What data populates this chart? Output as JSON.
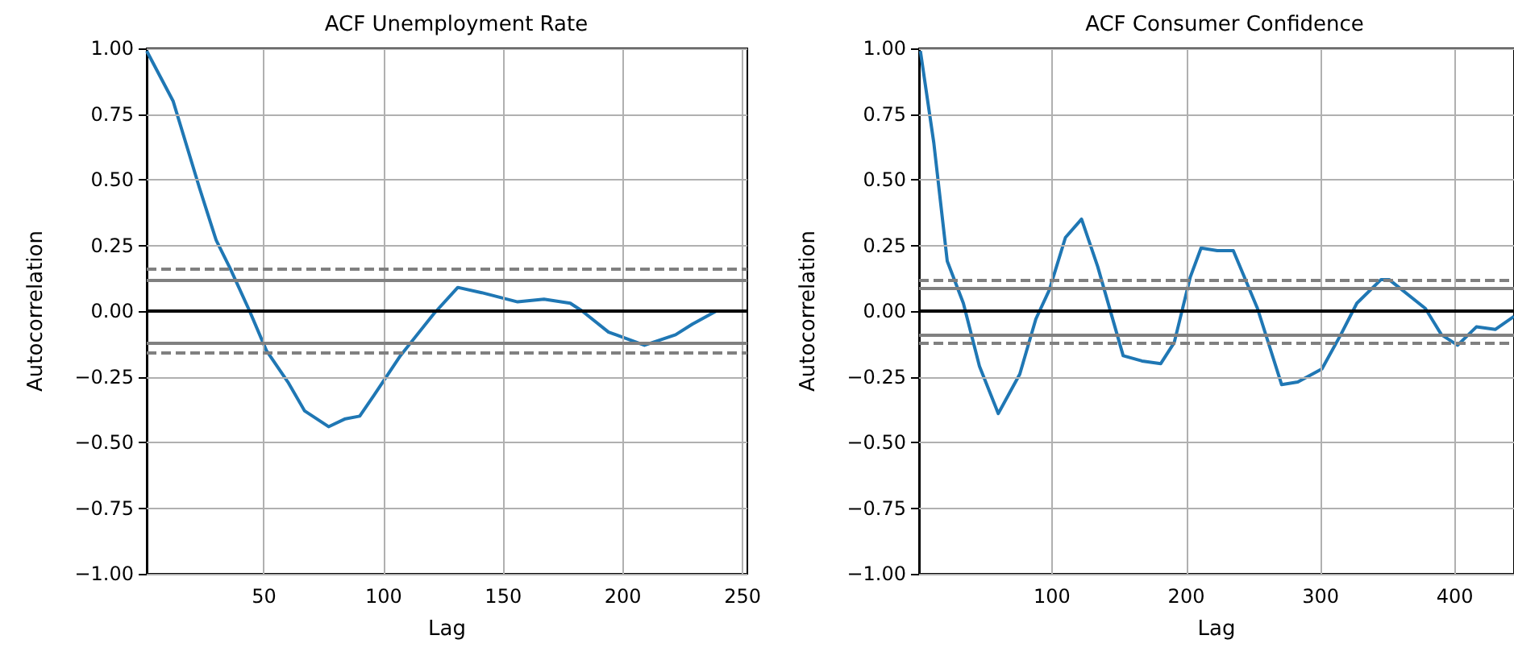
{
  "chart_data": [
    {
      "type": "line",
      "title": "ACF Unemployment Rate",
      "xlabel": "Lag",
      "ylabel": "Autocorrelation",
      "grid": true,
      "marker": "none",
      "line_style": "solid",
      "xlim": [
        1,
        252
      ],
      "xticks": [
        50,
        100,
        150,
        200,
        250
      ],
      "ylim": [
        -1,
        1
      ],
      "yticks": [
        {
          "value": -1,
          "label": "−1.00"
        },
        {
          "value": -0.75,
          "label": "−0.75"
        },
        {
          "value": -0.5,
          "label": "−0.50"
        },
        {
          "value": -0.25,
          "label": "−0.25"
        },
        {
          "value": 0,
          "label": "0.00"
        },
        {
          "value": 0.25,
          "label": "0.25"
        },
        {
          "value": 0.5,
          "label": "0.50"
        },
        {
          "value": 0.75,
          "label": "0.75"
        },
        {
          "value": 1,
          "label": "1.00"
        }
      ],
      "ref_lines": [
        {
          "axis": "y",
          "value": 0,
          "color": "#000000",
          "line_style": "solid"
        },
        {
          "axis": "y",
          "value": 0.12,
          "color": "#808080",
          "line_style": "solid"
        },
        {
          "axis": "y",
          "value": -0.12,
          "color": "#808080",
          "line_style": "solid"
        },
        {
          "axis": "y",
          "value": 0.16,
          "color": "#808080",
          "line_style": "dashed"
        },
        {
          "axis": "y",
          "value": -0.16,
          "color": "#808080",
          "line_style": "dashed"
        }
      ],
      "series": [
        {
          "color": "#1f77b4",
          "x": [
            1,
            12,
            23,
            30,
            36,
            44,
            51,
            60,
            67,
            77,
            84,
            90,
            96,
            107,
            121,
            131,
            141,
            156,
            167,
            178,
            183,
            194,
            209,
            222,
            229,
            239,
            250
          ],
          "values": [
            0.99,
            0.8,
            0.47,
            0.27,
            0.16,
            0.0,
            -0.15,
            -0.27,
            -0.38,
            -0.44,
            -0.41,
            -0.4,
            -0.32,
            -0.17,
            -0.01,
            0.09,
            0.07,
            0.035,
            0.045,
            0.03,
            0.0,
            -0.08,
            -0.13,
            -0.09,
            -0.05,
            0.0,
            0.0
          ]
        }
      ]
    },
    {
      "type": "line",
      "title": "ACF Consumer Confidence",
      "xlabel": "Lag",
      "ylabel": "Autocorrelation",
      "grid": true,
      "marker": "none",
      "line_style": "solid",
      "xlim": [
        1,
        444
      ],
      "xticks": [
        100,
        200,
        300,
        400
      ],
      "ylim": [
        -1,
        1
      ],
      "yticks": [
        {
          "value": -1,
          "label": "−1.00"
        },
        {
          "value": -0.75,
          "label": "−0.75"
        },
        {
          "value": -0.5,
          "label": "−0.50"
        },
        {
          "value": -0.25,
          "label": "−0.25"
        },
        {
          "value": 0,
          "label": "0.00"
        },
        {
          "value": 0.25,
          "label": "0.25"
        },
        {
          "value": 0.5,
          "label": "0.50"
        },
        {
          "value": 0.75,
          "label": "0.75"
        },
        {
          "value": 1,
          "label": "1.00"
        }
      ],
      "ref_lines": [
        {
          "axis": "y",
          "value": 0,
          "color": "#000000",
          "line_style": "solid"
        },
        {
          "axis": "y",
          "value": 0.09,
          "color": "#808080",
          "line_style": "solid"
        },
        {
          "axis": "y",
          "value": -0.09,
          "color": "#808080",
          "line_style": "solid"
        },
        {
          "axis": "y",
          "value": 0.12,
          "color": "#808080",
          "line_style": "dashed"
        },
        {
          "axis": "y",
          "value": -0.12,
          "color": "#808080",
          "line_style": "dashed"
        }
      ],
      "series": [
        {
          "color": "#1f77b4",
          "x": [
            2,
            12,
            22,
            34,
            46,
            60,
            76,
            88,
            98,
            110,
            122,
            134,
            153,
            167,
            181,
            191,
            203,
            211,
            223,
            235,
            253,
            271,
            283,
            301,
            315,
            327,
            345,
            351,
            378,
            390,
            402,
            416,
            430,
            444
          ],
          "values": [
            0.99,
            0.64,
            0.19,
            0.03,
            -0.21,
            -0.39,
            -0.24,
            -0.03,
            0.08,
            0.28,
            0.35,
            0.17,
            -0.17,
            -0.19,
            -0.2,
            -0.12,
            0.13,
            0.24,
            0.23,
            0.23,
            0.01,
            -0.28,
            -0.27,
            -0.22,
            -0.09,
            0.03,
            0.12,
            0.12,
            0.01,
            -0.09,
            -0.13,
            -0.06,
            -0.07,
            -0.02
          ]
        }
      ]
    }
  ]
}
